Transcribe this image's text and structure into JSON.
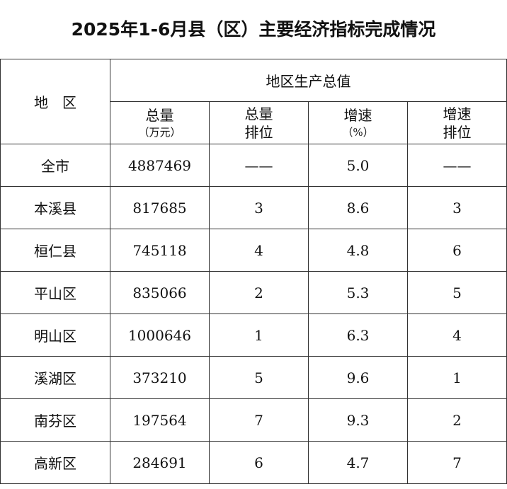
{
  "header": {
    "title": "2025年1-6月县（区）主要经济指标完成情况"
  },
  "table": {
    "region_header": "地　区",
    "group_header": "地区生产总值",
    "columns": [
      [
        "总量",
        "（万元）"
      ],
      [
        "总量",
        "排位"
      ],
      [
        "增速",
        "（%）"
      ],
      [
        "增速",
        "排位"
      ]
    ],
    "rows": [
      [
        "全市",
        "4887469",
        "——",
        "5.0",
        "——"
      ],
      [
        "本溪县",
        "817685",
        "3",
        "8.6",
        "3"
      ],
      [
        "桓仁县",
        "745118",
        "4",
        "4.8",
        "6"
      ],
      [
        "平山区",
        "835066",
        "2",
        "5.3",
        "5"
      ],
      [
        "明山区",
        "1000646",
        "1",
        "6.3",
        "4"
      ],
      [
        "溪湖区",
        "373210",
        "5",
        "9.6",
        "1"
      ],
      [
        "南芬区",
        "197564",
        "7",
        "9.3",
        "2"
      ],
      [
        "高新区",
        "284691",
        "6",
        "4.7",
        "7"
      ]
    ]
  }
}
